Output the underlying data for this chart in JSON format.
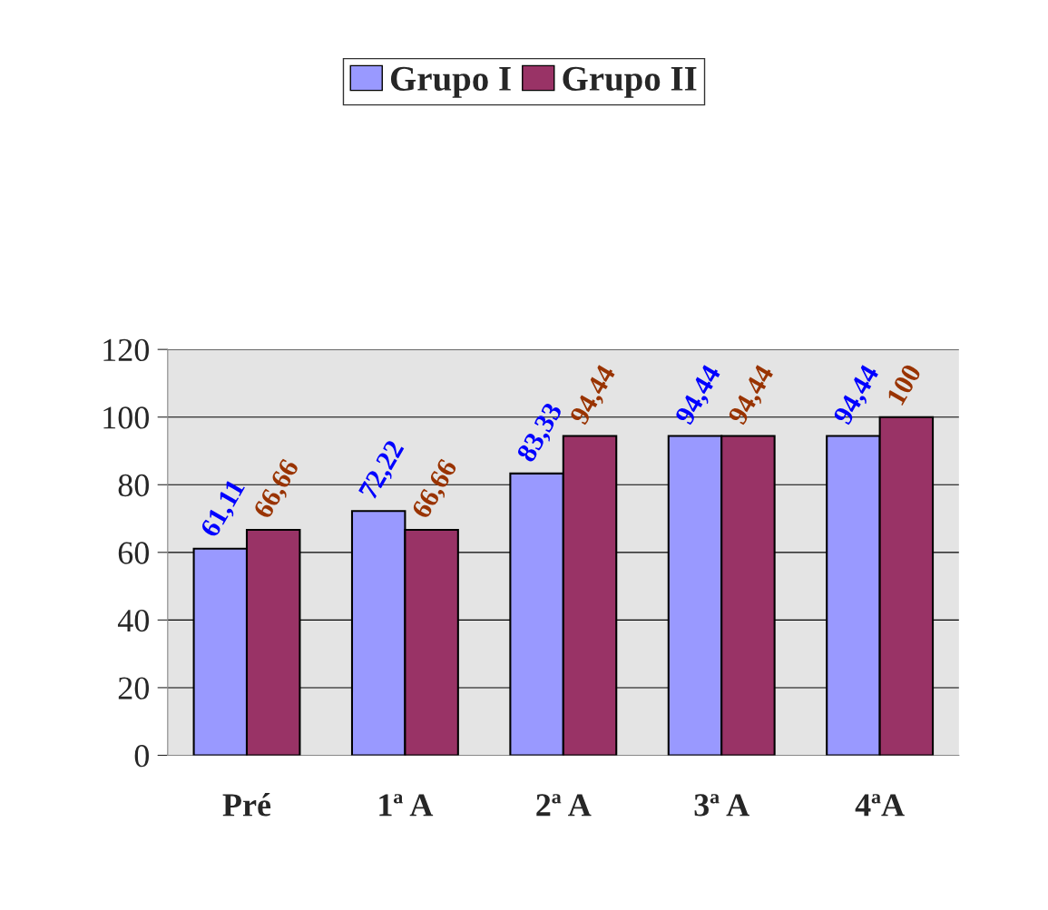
{
  "chart_data": {
    "type": "bar",
    "categories": [
      "Pré",
      "1ª A",
      "2ª A",
      "3ª A",
      "4ªA"
    ],
    "series": [
      {
        "name": "Grupo I",
        "color": "#9999ff",
        "values": [
          61.11,
          72.22,
          83.33,
          94.44,
          94.44
        ],
        "value_labels": [
          "61,11",
          "72,22",
          "83,33",
          "94,44",
          "94,44"
        ]
      },
      {
        "name": "Grupo II",
        "color": "#993366",
        "values": [
          66.66,
          66.66,
          94.44,
          94.44,
          100
        ],
        "value_labels": [
          "66,66",
          "66,66",
          "94,44",
          "94,44",
          "100"
        ]
      }
    ],
    "ylim": [
      0,
      120
    ],
    "yticks": [
      0,
      20,
      40,
      60,
      80,
      100,
      120
    ],
    "grid": "y",
    "legend": "top"
  }
}
